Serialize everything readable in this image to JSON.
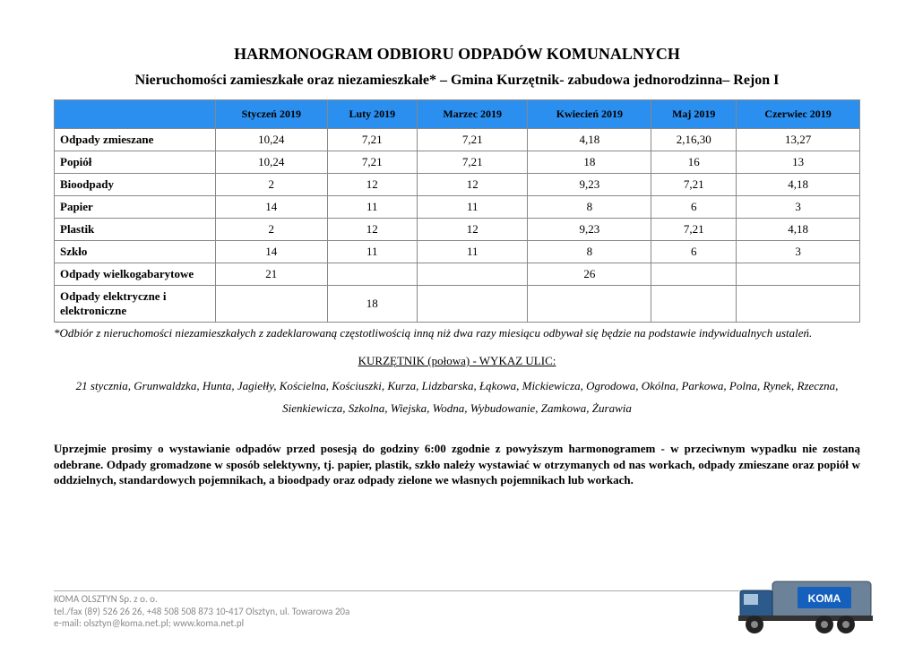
{
  "title": "HARMONOGRAM ODBIORU ODPADÓW KOMUNALNYCH",
  "subtitle": "Nieruchomości zamieszkałe oraz niezamieszkałe* – Gmina Kurzętnik- zabudowa jednorodzinna– Rejon I",
  "table": {
    "header_bg": "#2a8fef",
    "columns": [
      "",
      "Styczeń 2019",
      "Luty 2019",
      "Marzec 2019",
      "Kwiecień 2019",
      "Maj 2019",
      "Czerwiec 2019"
    ],
    "rows": [
      {
        "label": "Odpady zmieszane",
        "cells": [
          "10,24",
          "7,21",
          "7,21",
          "4,18",
          "2,16,30",
          "13,27"
        ]
      },
      {
        "label": "Popiół",
        "cells": [
          "10,24",
          "7,21",
          "7,21",
          "18",
          "16",
          "13"
        ]
      },
      {
        "label": "Bioodpady",
        "cells": [
          "2",
          "12",
          "12",
          "9,23",
          "7,21",
          "4,18"
        ]
      },
      {
        "label": "Papier",
        "cells": [
          "14",
          "11",
          "11",
          "8",
          "6",
          "3"
        ]
      },
      {
        "label": "Plastik",
        "cells": [
          "2",
          "12",
          "12",
          "9,23",
          "7,21",
          "4,18"
        ]
      },
      {
        "label": "Szkło",
        "cells": [
          "14",
          "11",
          "11",
          "8",
          "6",
          "3"
        ]
      },
      {
        "label": "Odpady wielkogabarytowe",
        "cells": [
          "21",
          "",
          "",
          "26",
          "",
          ""
        ]
      },
      {
        "label": "Odpady elektryczne i elektroniczne",
        "cells": [
          "",
          "18",
          "",
          "",
          "",
          ""
        ]
      }
    ]
  },
  "footnote": "*Odbiór z nieruchomości niezamieszkałych z zadeklarowaną częstotliwością inną niż dwa razy miesiącu odbywał się będzie na podstawie indywidualnych ustaleń.",
  "section_label": "KURZĘTNIK (połowa) - WYKAZ ULIC:",
  "streets": "21 stycznia, Grunwaldzka, Hunta, Jagiełły, Kościelna, Kościuszki, Kurza, Lidzbarska, Łąkowa, Mickiewicza, Ogrodowa, Okólna, Parkowa, Polna, Rynek, Rzeczna, Sienkiewicza, Szkolna, Wiejska, Wodna, Wybudowanie, Zamkowa, Żurawia",
  "notice": "Uprzejmie prosimy o wystawianie odpadów przed posesją do godziny 6:00 zgodnie z powyższym harmonogramem - w przeciwnym wypadku nie zostaną odebrane. Odpady gromadzone w sposób selektywny, tj. papier, plastik, szkło należy wystawiać w otrzymanych od nas workach, odpady zmieszane oraz popiół w oddzielnych, standardowych pojemnikach, a bioodpady oraz odpady zielone we własnych pojemnikach lub workach.",
  "footer": {
    "line1": "KOMA OLSZTYN Sp. z o. o.",
    "line2": "tel./fax (89) 526 26 26, +48 508 508 873 10-417 Olsztyn, ul. Towarowa 20a",
    "line3": "e-mail: olsztyn@koma.net.pl; www.koma.net.pl"
  },
  "truck": {
    "cab_color": "#2c5a8a",
    "body_color": "#5a7a96",
    "panel_color": "#1560bd",
    "logo_text": "KOMA"
  }
}
